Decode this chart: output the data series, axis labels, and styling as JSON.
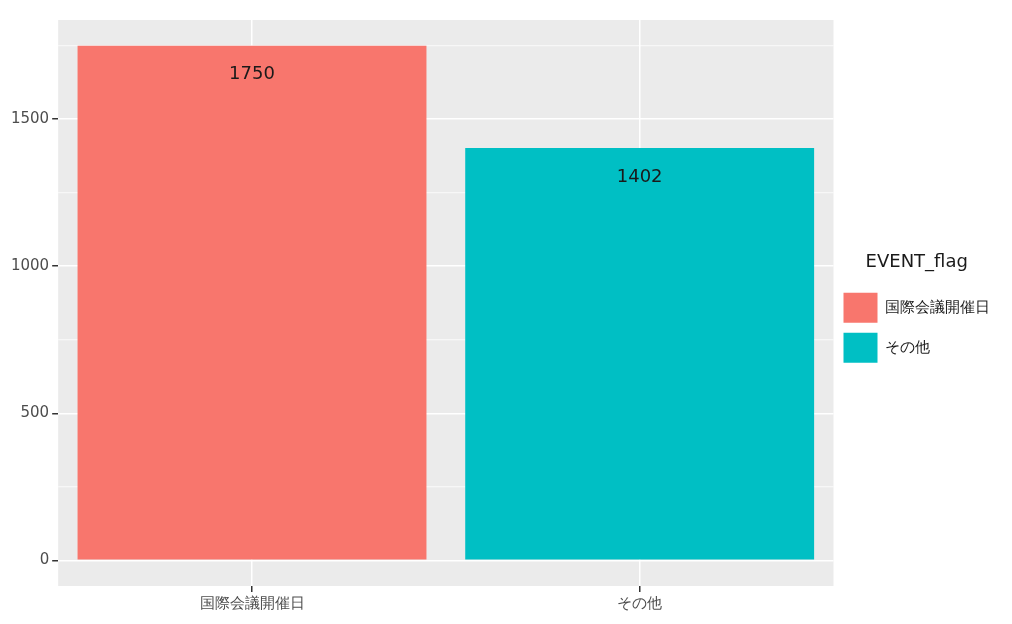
{
  "chart_data": {
    "type": "bar",
    "categories": [
      "国際会議開催日",
      "その他"
    ],
    "series": [
      {
        "name": "国際会議開催日",
        "color": "#f8766d",
        "values": [
          1750,
          null
        ]
      },
      {
        "name": "その他",
        "color": "#00bfc4",
        "values": [
          null,
          1402
        ]
      }
    ],
    "ylim": [
      -87.5,
      1837.5
    ],
    "yticks": [
      0,
      500,
      1000,
      1500
    ],
    "grid": true,
    "legend": "right",
    "legend_title": "EVENT_flag",
    "data_labels": true
  }
}
